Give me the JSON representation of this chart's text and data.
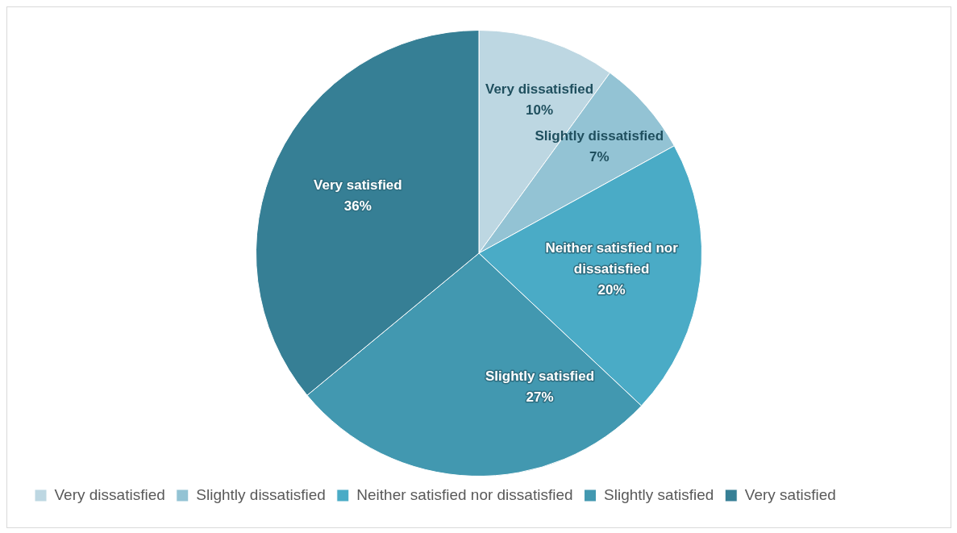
{
  "chart_data": {
    "type": "pie",
    "categories": [
      "Very dissatisfied",
      "Slightly dissatisfied",
      "Neither satisfied nor dissatisfied",
      "Slightly satisfied",
      "Very satisfied"
    ],
    "values": [
      10,
      7,
      20,
      27,
      36
    ],
    "value_labels": [
      "10%",
      "7%",
      "20%",
      "27%",
      "36%"
    ],
    "colors": [
      "#bdd7e2",
      "#93c3d4",
      "#4aabc6",
      "#4298b0",
      "#367f95"
    ],
    "legend": "bottom"
  }
}
